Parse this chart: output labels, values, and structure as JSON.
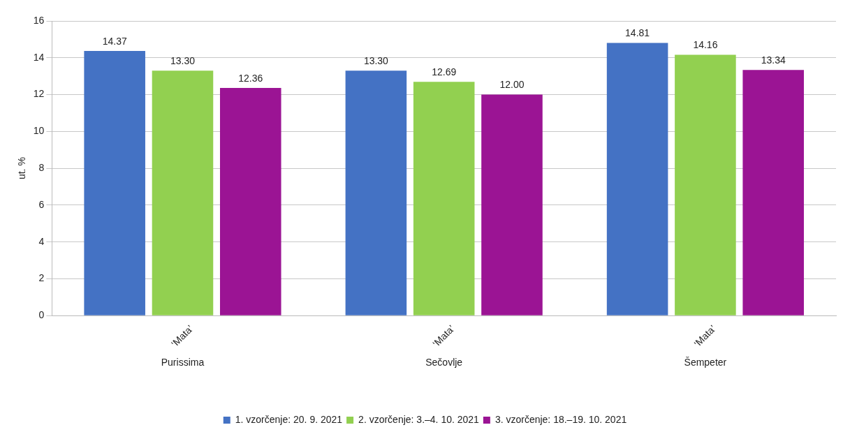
{
  "chart_data": {
    "type": "bar",
    "ylabel": "ut. %",
    "categories": [
      "Purissima",
      "Sečovlje",
      "Šempeter"
    ],
    "series": [
      {
        "name": "1. vzorčenje: 20. 9. 2021",
        "color": "#4472c4",
        "values": [
          14.37,
          13.3,
          14.81
        ],
        "value_labels": [
          "14.37",
          "13.30",
          "14.81"
        ]
      },
      {
        "name": "2. vzorčenje: 3.–4. 10. 2021",
        "color": "#92d050",
        "values": [
          13.3,
          12.69,
          14.16
        ],
        "value_labels": [
          "13.30",
          "12.69",
          "14.16"
        ]
      },
      {
        "name": "3. vzorčenje: 18.–19. 10. 2021",
        "color": "#9b1494",
        "values": [
          12.36,
          12.0,
          13.34
        ],
        "value_labels": [
          "12.36",
          "12.00",
          "13.34"
        ]
      }
    ],
    "ylim": [
      0,
      16
    ],
    "yticks": [
      0,
      2,
      4,
      6,
      8,
      10,
      12,
      14,
      16
    ],
    "grid": "y",
    "legend": "bottom",
    "annotations": [
      "‘Mata’",
      "‘Mata’",
      "‘Mata’"
    ]
  }
}
